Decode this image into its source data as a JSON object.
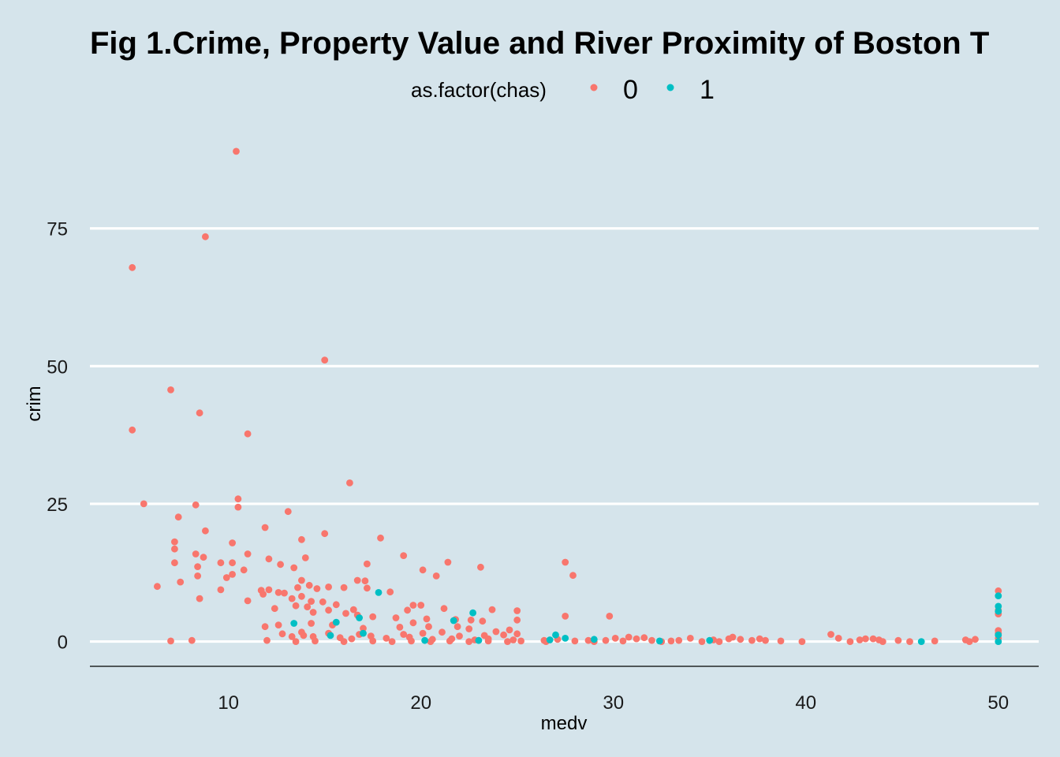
{
  "chart_data": {
    "type": "scatter",
    "title": "Fig 1.Crime, Property Value and River Proximity of Boston T",
    "xlabel": "medv",
    "ylabel": "crim",
    "xlim": [
      2.8,
      52.1
    ],
    "ylim": [
      -4.5,
      95
    ],
    "x_ticks": [
      10,
      20,
      30,
      40,
      50
    ],
    "y_ticks": [
      0,
      25,
      50,
      75
    ],
    "grid": "horizontal major lines only (white)",
    "legend": {
      "title": "as.factor(chas)",
      "position": "top",
      "entries": [
        "0",
        "1"
      ]
    },
    "colors": {
      "0": "#f8766d",
      "1": "#00bfc4",
      "background": "#d5e4eb",
      "grid": "#ffffff"
    },
    "series": [
      {
        "name": "0",
        "points": [
          [
            10.4,
            89.0
          ],
          [
            8.8,
            73.5
          ],
          [
            5.0,
            67.9
          ],
          [
            15.0,
            51.1
          ],
          [
            7.0,
            45.7
          ],
          [
            8.5,
            41.5
          ],
          [
            11.0,
            37.7
          ],
          [
            5.0,
            38.4
          ],
          [
            16.3,
            28.8
          ],
          [
            10.5,
            25.9
          ],
          [
            10.5,
            24.4
          ],
          [
            8.3,
            24.8
          ],
          [
            5.6,
            25.0
          ],
          [
            13.1,
            23.6
          ],
          [
            7.4,
            22.6
          ],
          [
            11.9,
            20.7
          ],
          [
            8.8,
            20.1
          ],
          [
            15.0,
            19.6
          ],
          [
            17.9,
            18.8
          ],
          [
            13.8,
            18.5
          ],
          [
            7.2,
            18.1
          ],
          [
            10.2,
            17.9
          ],
          [
            7.2,
            16.8
          ],
          [
            8.3,
            15.9
          ],
          [
            11.0,
            15.9
          ],
          [
            8.7,
            15.3
          ],
          [
            14.0,
            15.2
          ],
          [
            19.1,
            15.6
          ],
          [
            12.1,
            15.0
          ],
          [
            7.2,
            14.3
          ],
          [
            9.6,
            14.3
          ],
          [
            10.2,
            14.3
          ],
          [
            12.7,
            14.0
          ],
          [
            17.2,
            14.1
          ],
          [
            21.4,
            14.4
          ],
          [
            27.5,
            14.4
          ],
          [
            8.4,
            13.6
          ],
          [
            13.4,
            13.4
          ],
          [
            23.1,
            13.5
          ],
          [
            10.8,
            13.0
          ],
          [
            20.1,
            13.0
          ],
          [
            10.2,
            12.2
          ],
          [
            9.9,
            11.6
          ],
          [
            7.5,
            10.8
          ],
          [
            6.3,
            10.0
          ],
          [
            8.4,
            11.9
          ],
          [
            20.8,
            11.9
          ],
          [
            27.9,
            12.0
          ],
          [
            16.7,
            11.1
          ],
          [
            17.2,
            9.7
          ],
          [
            17.1,
            11.0
          ],
          [
            13.8,
            11.1
          ],
          [
            11.7,
            9.3
          ],
          [
            12.1,
            9.4
          ],
          [
            13.6,
            9.8
          ],
          [
            14.2,
            10.2
          ],
          [
            14.6,
            9.6
          ],
          [
            15.2,
            9.9
          ],
          [
            16.0,
            9.8
          ],
          [
            18.4,
            9.0
          ],
          [
            12.6,
            8.9
          ],
          [
            9.6,
            9.4
          ],
          [
            11.8,
            8.6
          ],
          [
            12.9,
            8.8
          ],
          [
            13.3,
            7.8
          ],
          [
            13.8,
            8.2
          ],
          [
            14.3,
            7.3
          ],
          [
            11.0,
            7.4
          ],
          [
            8.5,
            7.8
          ],
          [
            14.9,
            7.2
          ],
          [
            15.6,
            6.7
          ],
          [
            12.4,
            6.0
          ],
          [
            13.5,
            6.5
          ],
          [
            14.1,
            6.3
          ],
          [
            15.2,
            5.7
          ],
          [
            16.5,
            5.8
          ],
          [
            19.3,
            5.7
          ],
          [
            19.6,
            6.6
          ],
          [
            20.0,
            6.6
          ],
          [
            21.2,
            6.0
          ],
          [
            23.7,
            5.8
          ],
          [
            25.0,
            5.6
          ],
          [
            14.4,
            5.3
          ],
          [
            16.1,
            5.1
          ],
          [
            16.7,
            4.8
          ],
          [
            17.5,
            4.5
          ],
          [
            18.7,
            4.3
          ],
          [
            20.3,
            4.1
          ],
          [
            21.8,
            4.0
          ],
          [
            22.6,
            3.9
          ],
          [
            23.2,
            3.7
          ],
          [
            25.0,
            3.9
          ],
          [
            27.5,
            4.6
          ],
          [
            29.8,
            4.6
          ],
          [
            12.6,
            3.0
          ],
          [
            14.3,
            3.3
          ],
          [
            15.4,
            3.0
          ],
          [
            17.0,
            2.4
          ],
          [
            18.9,
            2.6
          ],
          [
            19.6,
            3.4
          ],
          [
            20.4,
            2.7
          ],
          [
            21.9,
            2.7
          ],
          [
            22.5,
            2.3
          ],
          [
            23.9,
            1.8
          ],
          [
            24.6,
            2.1
          ],
          [
            11.9,
            2.7
          ],
          [
            13.8,
            1.7
          ],
          [
            15.2,
            1.5
          ],
          [
            16.8,
            1.3
          ],
          [
            17.4,
            1.0
          ],
          [
            19.1,
            1.3
          ],
          [
            20.1,
            1.5
          ],
          [
            21.1,
            1.7
          ],
          [
            22.0,
            1.0
          ],
          [
            23.3,
            1.1
          ],
          [
            24.3,
            1.2
          ],
          [
            25.0,
            1.4
          ],
          [
            12.8,
            1.4
          ],
          [
            13.3,
            0.9
          ],
          [
            13.9,
            1.1
          ],
          [
            14.4,
            0.9
          ],
          [
            15.8,
            0.7
          ],
          [
            16.4,
            0.5
          ],
          [
            18.2,
            0.6
          ],
          [
            19.4,
            0.8
          ],
          [
            20.6,
            0.4
          ],
          [
            21.6,
            0.5
          ],
          [
            22.8,
            0.3
          ],
          [
            23.5,
            0.5
          ],
          [
            24.8,
            0.3
          ],
          [
            26.4,
            0.2
          ],
          [
            27.1,
            0.4
          ],
          [
            28.0,
            0.1
          ],
          [
            28.7,
            0.2
          ],
          [
            29.6,
            0.2
          ],
          [
            30.1,
            0.6
          ],
          [
            30.8,
            0.8
          ],
          [
            31.2,
            0.5
          ],
          [
            31.6,
            0.7
          ],
          [
            32.0,
            0.2
          ],
          [
            33.0,
            0.1
          ],
          [
            33.4,
            0.2
          ],
          [
            34.0,
            0.6
          ],
          [
            34.6,
            0.0
          ],
          [
            35.2,
            0.3
          ],
          [
            36.0,
            0.5
          ],
          [
            36.2,
            0.8
          ],
          [
            36.6,
            0.4
          ],
          [
            37.2,
            0.2
          ],
          [
            37.6,
            0.5
          ],
          [
            37.9,
            0.2
          ],
          [
            38.7,
            0.1
          ],
          [
            39.8,
            0.0
          ],
          [
            41.3,
            1.3
          ],
          [
            41.7,
            0.6
          ],
          [
            42.3,
            0.0
          ],
          [
            42.8,
            0.3
          ],
          [
            43.1,
            0.5
          ],
          [
            43.5,
            0.5
          ],
          [
            43.8,
            0.3
          ],
          [
            44.0,
            0.0
          ],
          [
            44.8,
            0.2
          ],
          [
            45.4,
            0.0
          ],
          [
            46.7,
            0.1
          ],
          [
            48.3,
            0.3
          ],
          [
            48.5,
            0.0
          ],
          [
            48.8,
            0.4
          ],
          [
            50.0,
            9.2
          ],
          [
            50.0,
            5.7
          ],
          [
            50.0,
            5.0
          ],
          [
            50.0,
            2.0
          ],
          [
            50.0,
            1.5
          ],
          [
            50.0,
            0.6
          ],
          [
            7.0,
            0.1
          ],
          [
            8.1,
            0.2
          ],
          [
            12.0,
            0.2
          ],
          [
            13.5,
            0.0
          ],
          [
            14.5,
            0.1
          ],
          [
            16.0,
            0.0
          ],
          [
            17.5,
            0.1
          ],
          [
            18.5,
            0.0
          ],
          [
            19.5,
            0.1
          ],
          [
            20.5,
            0.0
          ],
          [
            21.5,
            0.1
          ],
          [
            22.5,
            0.0
          ],
          [
            23.5,
            0.1
          ],
          [
            24.5,
            0.0
          ],
          [
            25.2,
            0.1
          ],
          [
            26.5,
            0.0
          ],
          [
            29.0,
            0.0
          ],
          [
            30.5,
            0.1
          ],
          [
            32.5,
            0.0
          ],
          [
            35.5,
            0.0
          ]
        ]
      },
      {
        "name": "1",
        "points": [
          [
            17.8,
            8.9
          ],
          [
            22.7,
            5.2
          ],
          [
            16.8,
            4.3
          ],
          [
            21.7,
            3.8
          ],
          [
            13.4,
            3.3
          ],
          [
            15.6,
            3.5
          ],
          [
            17.0,
            1.5
          ],
          [
            15.3,
            1.1
          ],
          [
            27.0,
            1.2
          ],
          [
            27.5,
            0.6
          ],
          [
            29.0,
            0.4
          ],
          [
            32.4,
            0.1
          ],
          [
            35.0,
            0.2
          ],
          [
            46.0,
            0.0
          ],
          [
            50.0,
            8.3
          ],
          [
            50.0,
            6.4
          ],
          [
            50.0,
            5.5
          ],
          [
            50.0,
            1.2
          ],
          [
            50.0,
            0.0
          ],
          [
            20.2,
            0.2
          ],
          [
            23.0,
            0.2
          ],
          [
            26.7,
            0.3
          ]
        ]
      }
    ]
  }
}
